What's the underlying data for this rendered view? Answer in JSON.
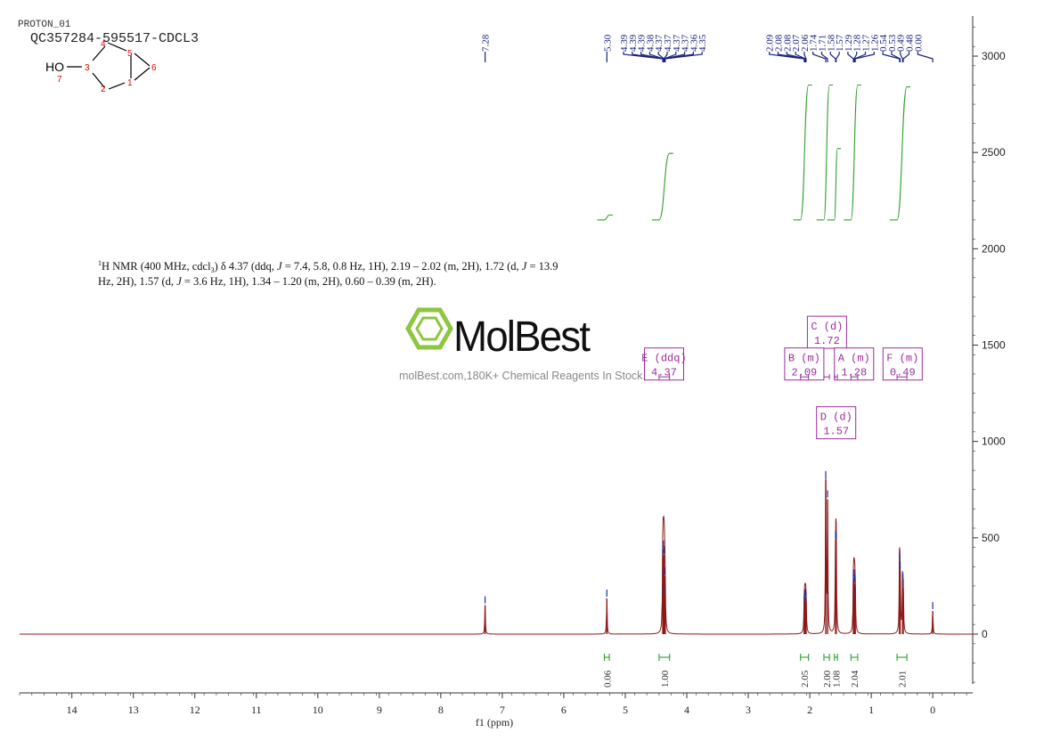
{
  "header": {
    "title": "PROTON_01",
    "sample": "QC357284-595517-CDCL3"
  },
  "molecule": {
    "ho_label": "HO",
    "atoms": [
      {
        "id": "1",
        "label": "1"
      },
      {
        "id": "2",
        "label": "2"
      },
      {
        "id": "3",
        "label": "3"
      },
      {
        "id": "4",
        "label": "4"
      },
      {
        "id": "5",
        "label": "5"
      },
      {
        "id": "6",
        "label": "6"
      },
      {
        "id": "7",
        "label": "7"
      }
    ]
  },
  "description": {
    "line1_prefix": "1",
    "line1_rest": "H NMR (400 MHz, cdcl",
    "line1_sub": "3",
    "line1_after": ") δ 4.37 (ddq, ",
    "j1": "J",
    "line1_after_j1": " = 7.4, 5.8, 0.8 Hz, 1H), 2.19 – 2.02 (m, 2H), 1.72 (d, ",
    "j2": "J",
    "line1_end": " = 13.9",
    "line2_start": "Hz, 2H), 1.57 (d, ",
    "j3": "J",
    "line2_end": " = 3.6 Hz, 1H), 1.34 – 1.20 (m, 2H), 0.60 – 0.39 (m, 2H)."
  },
  "watermark": {
    "brand": "MolBest",
    "tagline": "molBest.com,180K+ Chemical Reagents In Stock."
  },
  "colors": {
    "spectrum": "#8b1a1a",
    "peak_marker": "#1f2fa0",
    "peak_label": "#1a237e",
    "integral": "#2e9e2e",
    "multiplet_box": "#9b2c9b",
    "watermark_green": "#8dc63f",
    "axis": "#333333"
  },
  "chart_data": {
    "type": "line",
    "title": "",
    "xlabel": "f1 (ppm)",
    "ylabel": "",
    "xlim": [
      14.85,
      -0.65
    ],
    "ylim": [
      -300,
      3200
    ],
    "x_ticks": [
      14,
      13,
      12,
      11,
      10,
      9,
      8,
      7,
      6,
      5,
      4,
      3,
      2,
      1,
      0
    ],
    "y_ticks": [
      3000,
      2500,
      2000,
      1500,
      1000,
      500,
      0
    ],
    "peaks": [
      {
        "ppm": 7.28,
        "height": 150
      },
      {
        "ppm": 5.3,
        "height": 185
      },
      {
        "ppm": 4.39,
        "height": 400
      },
      {
        "ppm": 4.38,
        "height": 440
      },
      {
        "ppm": 4.37,
        "height": 410
      },
      {
        "ppm": 4.36,
        "height": 300
      },
      {
        "ppm": 4.35,
        "height": 200
      },
      {
        "ppm": 2.09,
        "height": 150
      },
      {
        "ppm": 2.08,
        "height": 180
      },
      {
        "ppm": 2.07,
        "height": 190
      },
      {
        "ppm": 2.06,
        "height": 170
      },
      {
        "ppm": 1.74,
        "height": 800
      },
      {
        "ppm": 1.71,
        "height": 700
      },
      {
        "ppm": 1.58,
        "height": 490
      },
      {
        "ppm": 1.57,
        "height": 480
      },
      {
        "ppm": 1.29,
        "height": 270
      },
      {
        "ppm": 1.28,
        "height": 290
      },
      {
        "ppm": 1.27,
        "height": 260
      },
      {
        "ppm": 1.26,
        "height": 200
      },
      {
        "ppm": 0.54,
        "height": 380
      },
      {
        "ppm": 0.53,
        "height": 330
      },
      {
        "ppm": 0.49,
        "height": 280
      },
      {
        "ppm": 0.48,
        "height": 240
      },
      {
        "ppm": 0.0,
        "height": 120
      }
    ],
    "peak_labels": [
      "7.28",
      "5.30",
      "4.39",
      "4.39",
      "4.39",
      "4.38",
      "4.37",
      "4.37",
      "4.37",
      "4.37",
      "4.36",
      "4.35",
      "2.09",
      "2.08",
      "2.08",
      "2.07",
      "2.06",
      "1.74",
      "1.71",
      "1.58",
      "1.57",
      "1.29",
      "1.28",
      "1.27",
      "1.26",
      "0.54",
      "0.53",
      "0.49",
      "0.48",
      "0.00"
    ],
    "integrals": [
      {
        "from": 5.34,
        "to": 5.26,
        "value": "0.06",
        "curve_bottom": 2150,
        "curve_top": 2175
      },
      {
        "from": 4.45,
        "to": 4.28,
        "value": "1.00",
        "curve_bottom": 2150,
        "curve_top": 2495
      },
      {
        "from": 2.15,
        "to": 2.02,
        "value": "2.05",
        "curve_bottom": 2150,
        "curve_top": 2850
      },
      {
        "from": 1.77,
        "to": 1.68,
        "value": "2.00",
        "curve_bottom": 2150,
        "curve_top": 2850
      },
      {
        "from": 1.6,
        "to": 1.55,
        "value": "1.08",
        "curve_bottom": 2150,
        "curve_top": 2520
      },
      {
        "from": 1.33,
        "to": 1.22,
        "value": "2.04",
        "curve_bottom": 2150,
        "curve_top": 2850
      },
      {
        "from": 0.58,
        "to": 0.42,
        "value": "2.01",
        "curve_bottom": 2150,
        "curve_top": 2840
      }
    ],
    "multiplets": [
      {
        "id": "E",
        "kind": "(ddq)",
        "shift": "4.37",
        "ppm": 4.37,
        "box_ppm": 4.37,
        "box_y": 1485,
        "range": [
          4.45,
          4.28
        ]
      },
      {
        "id": "C",
        "kind": "(d)",
        "shift": "1.72",
        "ppm": 1.72,
        "box_ppm": 1.72,
        "box_y": 1650,
        "range": [
          1.77,
          1.68
        ]
      },
      {
        "id": "B",
        "kind": "(m)",
        "shift": "2.09",
        "ppm": 2.09,
        "box_ppm": 2.09,
        "box_y": 1485,
        "range": [
          2.15,
          2.02
        ]
      },
      {
        "id": "A",
        "kind": "(m)",
        "shift": "1.28",
        "ppm": 1.28,
        "box_ppm": 1.28,
        "box_y": 1485,
        "range": [
          1.33,
          1.22
        ]
      },
      {
        "id": "D",
        "kind": "(d)",
        "shift": "1.57",
        "ppm": 1.57,
        "box_ppm": 1.57,
        "box_y": 1180,
        "range": [
          1.6,
          1.55
        ]
      },
      {
        "id": "F",
        "kind": "(m)",
        "shift": "0.49",
        "ppm": 0.49,
        "box_ppm": 0.49,
        "box_y": 1485,
        "range": [
          0.58,
          0.42
        ]
      }
    ]
  }
}
